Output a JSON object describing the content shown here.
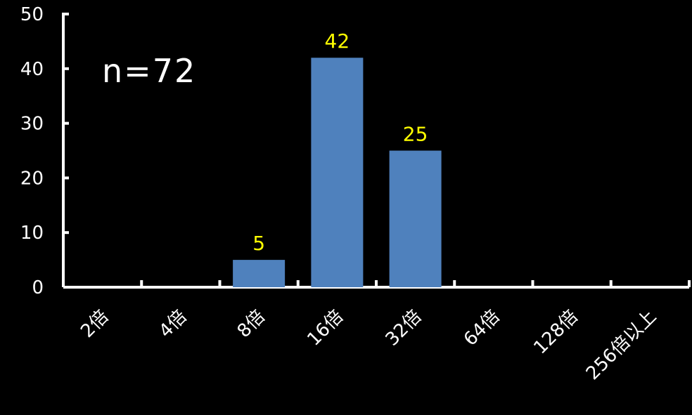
{
  "chart_data": {
    "type": "bar",
    "categories": [
      "2倍",
      "4倍",
      "8倍",
      "16倍",
      "32倍",
      "64倍",
      "128倍",
      "256倍以上"
    ],
    "values": [
      0,
      0,
      5,
      42,
      25,
      0,
      0,
      0
    ],
    "data_labels": [
      "",
      "",
      "5",
      "42",
      "25",
      "",
      "",
      ""
    ],
    "annotation": "n=72",
    "title": "",
    "xlabel": "",
    "ylabel": "",
    "ylim": [
      0,
      50
    ],
    "yticks": [
      "0",
      "10",
      "20",
      "30",
      "40",
      "50"
    ],
    "grid": false,
    "colors": {
      "background": "#000000",
      "bar": "#4f81bd",
      "axis": "#ffffff",
      "tick_label": "#ffffff",
      "data_label": "#ffff00"
    }
  }
}
